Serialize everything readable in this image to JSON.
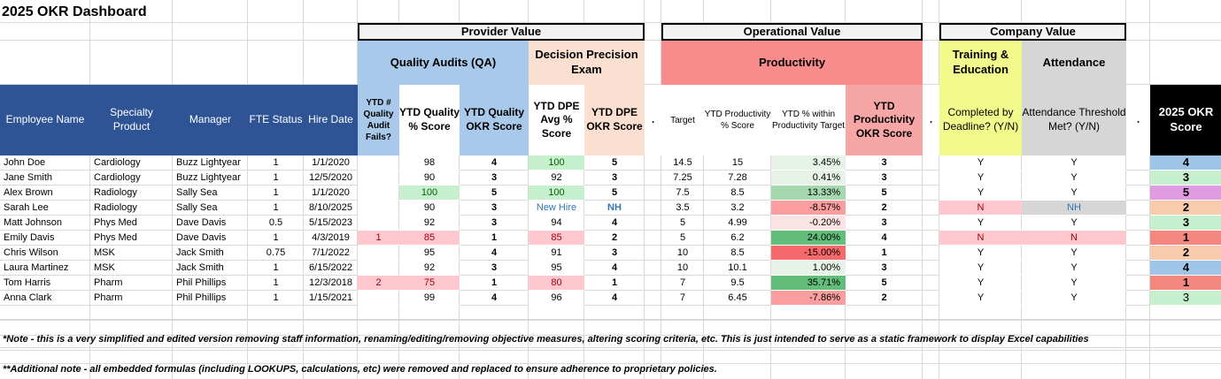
{
  "title": "2025 OKR Dashboard",
  "groups": {
    "provider_value": "Provider Value",
    "operational_value": "Operational Value",
    "company_value": "Company Value"
  },
  "subgroups": {
    "quality_audits": "Quality Audits (QA)",
    "dpe": "Decision Precision Exam",
    "productivity": "Productivity",
    "training": "Training & Education",
    "attendance": "Attendance"
  },
  "columns": {
    "name": "Employee Name",
    "specialty": "Specialty Product",
    "manager": "Manager",
    "fte": "FTE Status",
    "hire": "Hire Date",
    "qa_fails": "YTD # Quality Audit Fails?",
    "qa_score": "YTD Quality % Score",
    "qa_okr": "YTD Quality OKR Score",
    "dpe_avg": "YTD DPE Avg % Score",
    "dpe_okr": "YTD DPE OKR Score",
    "sep1": ".",
    "target": "Target",
    "prod": "YTD Productivity % Score",
    "within": "YTD % within Productivity Target",
    "prod_okr": "YTD Productivity OKR Score",
    "sep2": ".",
    "training": "Completed by Deadline? (Y/N)",
    "attendance": "Attendance Threshold Met? (Y/N)",
    "sep3": ".",
    "okr": "2025 OKR Score"
  },
  "rows": [
    {
      "name": "John Doe",
      "specialty": "Cardiology",
      "manager": "Buzz Lightyear",
      "fte": "1",
      "hire": "1/1/2020",
      "qa_fails": "",
      "qa_score": "98",
      "qa_okr": "4",
      "dpe_avg": "100",
      "dpe_okr": "5",
      "target": "14.5",
      "prod": "15",
      "within": "3.45%",
      "prod_okr": "3",
      "training": "Y",
      "attendance": "Y",
      "okr": "4"
    },
    {
      "name": "Jane Smith",
      "specialty": "Cardiology",
      "manager": "Buzz Lightyear",
      "fte": "1",
      "hire": "12/5/2020",
      "qa_fails": "",
      "qa_score": "90",
      "qa_okr": "3",
      "dpe_avg": "92",
      "dpe_okr": "3",
      "target": "7.25",
      "prod": "7.28",
      "within": "0.41%",
      "prod_okr": "3",
      "training": "Y",
      "attendance": "Y",
      "okr": "3"
    },
    {
      "name": "Alex Brown",
      "specialty": "Radiology",
      "manager": "Sally Sea",
      "fte": "1",
      "hire": "1/1/2020",
      "qa_fails": "",
      "qa_score": "100",
      "qa_okr": "5",
      "dpe_avg": "100",
      "dpe_okr": "5",
      "target": "7.5",
      "prod": "8.5",
      "within": "13.33%",
      "prod_okr": "5",
      "training": "Y",
      "attendance": "Y",
      "okr": "5"
    },
    {
      "name": "Sarah Lee",
      "specialty": "Radiology",
      "manager": "Sally Sea",
      "fte": "1",
      "hire": "8/10/2025",
      "qa_fails": "",
      "qa_score": "90",
      "qa_okr": "3",
      "dpe_avg": "New Hire",
      "dpe_okr": "NH",
      "target": "3.5",
      "prod": "3.2",
      "within": "-8.57%",
      "prod_okr": "2",
      "training": "N",
      "attendance": "NH",
      "okr": "2"
    },
    {
      "name": "Matt Johnson",
      "specialty": "Phys Med",
      "manager": "Dave Davis",
      "fte": "0.5",
      "hire": "5/15/2023",
      "qa_fails": "",
      "qa_score": "92",
      "qa_okr": "3",
      "dpe_avg": "94",
      "dpe_okr": "4",
      "target": "5",
      "prod": "4.99",
      "within": "-0.20%",
      "prod_okr": "3",
      "training": "Y",
      "attendance": "Y",
      "okr": "3"
    },
    {
      "name": "Emily Davis",
      "specialty": "Phys Med",
      "manager": "Dave Davis",
      "fte": "1",
      "hire": "4/3/2019",
      "qa_fails": "1",
      "qa_score": "85",
      "qa_okr": "1",
      "dpe_avg": "85",
      "dpe_okr": "2",
      "target": "5",
      "prod": "6.2",
      "within": "24.00%",
      "prod_okr": "4",
      "training": "N",
      "attendance": "N",
      "okr": "1"
    },
    {
      "name": "Chris Wilson",
      "specialty": "MSK",
      "manager": "Jack Smith",
      "fte": "0.75",
      "hire": "7/1/2022",
      "qa_fails": "",
      "qa_score": "95",
      "qa_okr": "4",
      "dpe_avg": "91",
      "dpe_okr": "3",
      "target": "10",
      "prod": "8.5",
      "within": "-15.00%",
      "prod_okr": "1",
      "training": "Y",
      "attendance": "Y",
      "okr": "2"
    },
    {
      "name": "Laura Martinez",
      "specialty": "MSK",
      "manager": "Jack Smith",
      "fte": "1",
      "hire": "6/15/2022",
      "qa_fails": "",
      "qa_score": "92",
      "qa_okr": "3",
      "dpe_avg": "95",
      "dpe_okr": "4",
      "target": "10",
      "prod": "10.1",
      "within": "1.00%",
      "prod_okr": "3",
      "training": "Y",
      "attendance": "Y",
      "okr": "4"
    },
    {
      "name": "Tom Harris",
      "specialty": "Pharm",
      "manager": "Phil Phillips",
      "fte": "1",
      "hire": "12/3/2018",
      "qa_fails": "2",
      "qa_score": "75",
      "qa_okr": "1",
      "dpe_avg": "80",
      "dpe_okr": "1",
      "target": "7",
      "prod": "9.5",
      "within": "35.71%",
      "prod_okr": "5",
      "training": "Y",
      "attendance": "Y",
      "okr": "1"
    },
    {
      "name": "Anna Clark",
      "specialty": "Pharm",
      "manager": "Phil Phillips",
      "fte": "1",
      "hire": "1/15/2021",
      "qa_fails": "",
      "qa_score": "99",
      "qa_okr": "4",
      "dpe_avg": "96",
      "dpe_okr": "4",
      "target": "7",
      "prod": "6.45",
      "within": "-7.86%",
      "prod_okr": "2",
      "training": "Y",
      "attendance": "Y",
      "okr": "3"
    }
  ],
  "notes": [
    "*Note - this is a very simplified and edited version removing staff information, renaming/editing/removing objective measures, altering scoring criteria, etc. This is just intended to serve as a static framework to display Excel capabilities",
    "**Additional note - all embedded formulas (including LOOKUPS, calculations, etc) were removed and replaced to ensure adherence to proprietary policies."
  ],
  "colors": {
    "header_blue": "#2f5496",
    "qa_blue": "#a9c9ea",
    "dpe_peach": "#fbe0d2",
    "prod_red": "#f88c8c",
    "prod_okr_pink": "#f7a6a6",
    "training_yellow": "#f2fa8c",
    "attendance_gray": "#d6d6d6",
    "okr_black": "#000000",
    "good_green": "#c6efce",
    "bad_red": "#ffc7ce",
    "strong_green": "#63be7b",
    "strong_red": "#f8696b",
    "okr_blue": "#9fc5e8",
    "okr_green": "#c6efce",
    "okr_purple": "#e19be0",
    "okr_peach": "#f8cbad",
    "okr_red": "#f4877f",
    "nh_text": "#2f75b5"
  }
}
